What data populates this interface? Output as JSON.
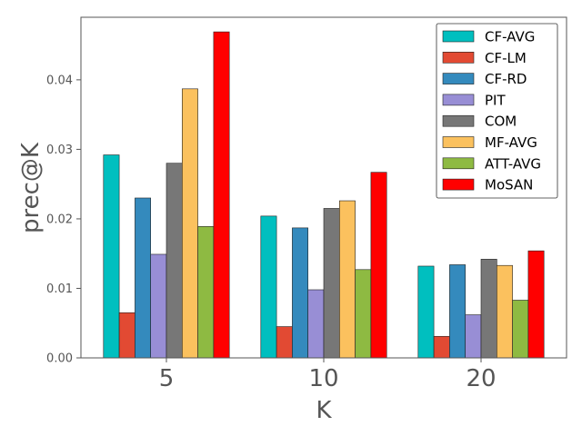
{
  "chart_data": {
    "type": "bar",
    "title": "",
    "xlabel": "K",
    "ylabel": "prec@K",
    "categories": [
      "5",
      "10",
      "20"
    ],
    "ylim": [
      0,
      0.049
    ],
    "yticks": [
      "0.00",
      "0.01",
      "0.02",
      "0.03",
      "0.04"
    ],
    "ytick_values": [
      0,
      0.01,
      0.02,
      0.03,
      0.04
    ],
    "legend_position": "top-right",
    "grid": false,
    "series": [
      {
        "name": "CF-AVG",
        "color": "#00bfbf",
        "values": [
          0.0292,
          0.0204,
          0.0132
        ]
      },
      {
        "name": "CF-LM",
        "color": "#e24a33",
        "values": [
          0.0065,
          0.0045,
          0.0031
        ]
      },
      {
        "name": "CF-RD",
        "color": "#348abd",
        "values": [
          0.023,
          0.0187,
          0.0134
        ]
      },
      {
        "name": "PIT",
        "color": "#988ed5",
        "values": [
          0.0149,
          0.0098,
          0.0062
        ]
      },
      {
        "name": "COM",
        "color": "#777777",
        "values": [
          0.028,
          0.0215,
          0.0142
        ]
      },
      {
        "name": "MF-AVG",
        "color": "#fbc15e",
        "values": [
          0.0387,
          0.0226,
          0.0133
        ]
      },
      {
        "name": "ATT-AVG",
        "color": "#8eba42",
        "values": [
          0.0189,
          0.0127,
          0.0083
        ]
      },
      {
        "name": "MoSAN",
        "color": "#ff0000",
        "values": [
          0.0469,
          0.0267,
          0.0154
        ]
      }
    ]
  }
}
